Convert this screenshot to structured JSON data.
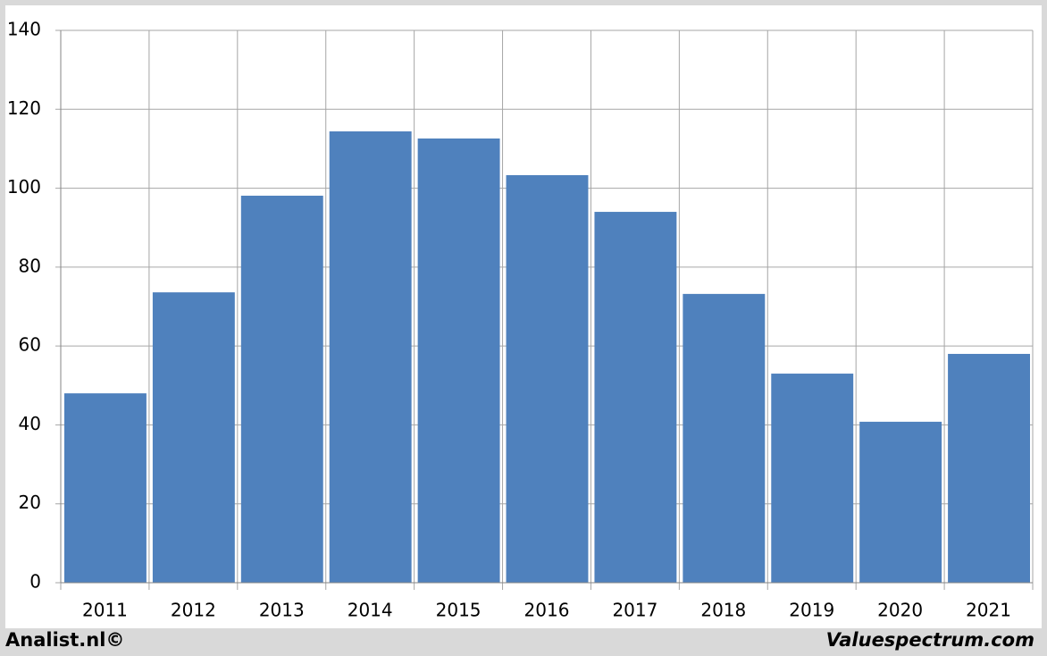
{
  "chart_data": {
    "type": "bar",
    "categories": [
      "2011",
      "2012",
      "2013",
      "2014",
      "2015",
      "2016",
      "2017",
      "2018",
      "2019",
      "2020",
      "2021"
    ],
    "values": [
      48,
      73.6,
      98.1,
      114.4,
      112.6,
      103.3,
      94,
      73.2,
      53,
      40.8,
      58
    ],
    "color": "#4f81bd",
    "ylim": [
      0,
      140
    ],
    "yticks": [
      0,
      20,
      40,
      60,
      80,
      100,
      120,
      140
    ],
    "grid": true,
    "annotations": [
      "Analist.nl©",
      "Valuespectrum.com"
    ]
  }
}
